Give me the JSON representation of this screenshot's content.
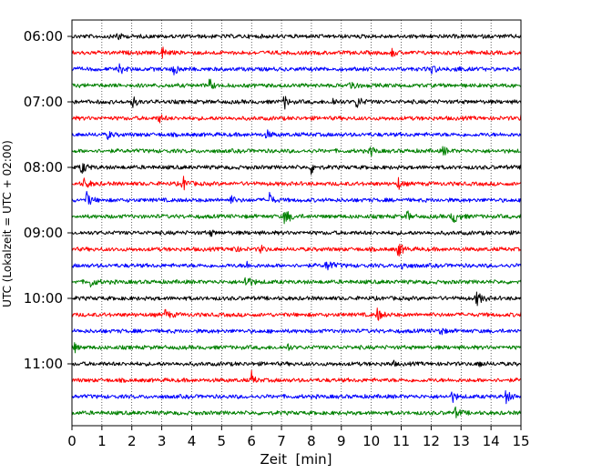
{
  "chart_data": {
    "type": "line",
    "chart_kind": "helicorder (seismogram drum plot)",
    "xlabel": "Zeit  [min]",
    "ylabel": "UTC (Lokalzeit = UTC + 02:00)",
    "xlim": [
      0,
      15
    ],
    "x_ticks": [
      "0",
      "1",
      "2",
      "3",
      "4",
      "5",
      "6",
      "7",
      "8",
      "9",
      "10",
      "11",
      "12",
      "13",
      "14",
      "15"
    ],
    "y_tick_labels": [
      "06:00",
      "07:00",
      "08:00",
      "09:00",
      "10:00",
      "11:00"
    ],
    "grid": "vertical dotted lines at each minute",
    "trace_interval_minutes": 15,
    "trace_color_cycle": [
      "#000000",
      "#ff0000",
      "#0000ff",
      "#008000"
    ],
    "traces": [
      {
        "start": "06:00",
        "color": "#000000",
        "events_min": [
          1.5
        ]
      },
      {
        "start": "06:15",
        "color": "#ff0000",
        "events_min": [
          3.0,
          10.7
        ]
      },
      {
        "start": "06:30",
        "color": "#0000ff",
        "events_min": [
          1.6,
          3.4,
          12.0,
          12.8
        ]
      },
      {
        "start": "06:45",
        "color": "#008000",
        "events_min": [
          4.6,
          9.3
        ]
      },
      {
        "start": "07:00",
        "color": "#000000",
        "events_min": [
          2.0,
          7.1,
          8.7,
          9.5
        ]
      },
      {
        "start": "07:15",
        "color": "#ff0000",
        "events_min": [
          2.9,
          15.0
        ]
      },
      {
        "start": "07:30",
        "color": "#0000ff",
        "events_min": [
          1.2,
          6.5
        ]
      },
      {
        "start": "07:45",
        "color": "#008000",
        "events_min": [
          10.0,
          12.4
        ]
      },
      {
        "start": "08:00",
        "color": "#000000",
        "events_min": [
          0.3,
          8.0
        ]
      },
      {
        "start": "08:15",
        "color": "#ff0000",
        "events_min": [
          0.4,
          3.7,
          10.9
        ]
      },
      {
        "start": "08:30",
        "color": "#0000ff",
        "events_min": [
          0.5,
          5.3,
          6.6
        ]
      },
      {
        "start": "08:45",
        "color": "#008000",
        "events_min": [
          7.1,
          11.2,
          12.7
        ]
      },
      {
        "start": "09:00",
        "color": "#000000",
        "events_min": [
          4.6
        ]
      },
      {
        "start": "09:15",
        "color": "#ff0000",
        "events_min": [
          5.4,
          6.3,
          10.9
        ]
      },
      {
        "start": "09:30",
        "color": "#0000ff",
        "events_min": [
          5.8,
          8.5,
          11.0
        ]
      },
      {
        "start": "09:45",
        "color": "#008000",
        "events_min": [
          0.6,
          5.8
        ]
      },
      {
        "start": "10:00",
        "color": "#000000",
        "events_min": [
          13.5
        ]
      },
      {
        "start": "10:15",
        "color": "#ff0000",
        "events_min": [
          3.1,
          10.2,
          15.0
        ]
      },
      {
        "start": "10:30",
        "color": "#0000ff",
        "events_min": [
          12.3
        ]
      },
      {
        "start": "10:45",
        "color": "#008000",
        "events_min": [
          0.1,
          7.2
        ]
      },
      {
        "start": "11:00",
        "color": "#000000",
        "events_min": [
          10.7,
          13.6
        ]
      },
      {
        "start": "11:15",
        "color": "#ff0000",
        "events_min": [
          6.0
        ]
      },
      {
        "start": "11:30",
        "color": "#0000ff",
        "events_min": [
          12.7,
          14.5
        ]
      },
      {
        "start": "11:45",
        "color": "#008000",
        "events_min": [
          12.8
        ]
      }
    ]
  }
}
